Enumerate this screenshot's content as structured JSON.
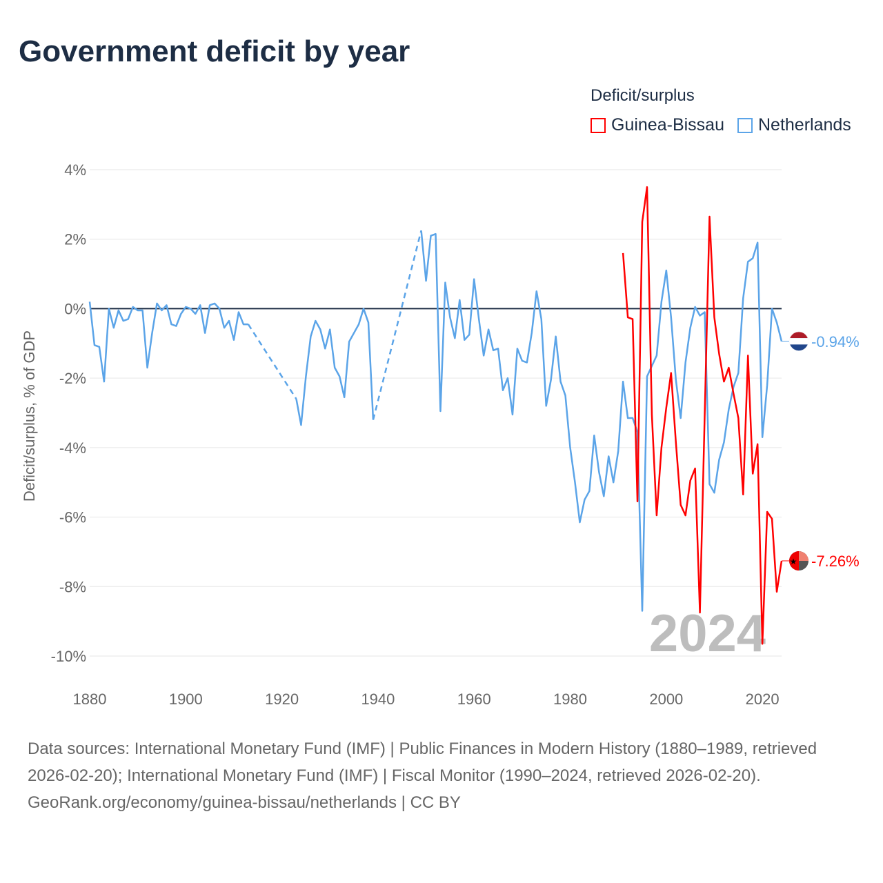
{
  "title": "Government deficit by year",
  "legend": {
    "title": "Deficit/surplus",
    "items": [
      {
        "label": "Guinea-Bissau",
        "color": "#ff0000"
      },
      {
        "label": "Netherlands",
        "color": "#5ba4e8"
      }
    ]
  },
  "year_watermark": "2024",
  "footer": {
    "sources": "Data sources: International Monetary Fund (IMF) | Public Finances in Modern History (1880–1989, retrieved 2026-02-20); International Monetary Fund (IMF) | Fiscal Monitor (1990–2024, retrieved 2026-02-20).",
    "credit": "GeoRank.org/economy/guinea-bissau/netherlands | CC BY"
  },
  "chart_data": {
    "type": "line",
    "title": "Government deficit by year",
    "xlabel": "",
    "ylabel": "Deficit/surplus, % of GDP",
    "xlim": [
      1880,
      2024
    ],
    "ylim": [
      -10,
      4
    ],
    "x_ticks": [
      1880,
      1900,
      1920,
      1940,
      1960,
      1980,
      2000,
      2020
    ],
    "y_ticks": [
      4,
      2,
      0,
      -2,
      -4,
      -6,
      -8,
      -10
    ],
    "y_tick_labels": [
      "4%",
      "2%",
      "0%",
      "-2%",
      "-4%",
      "-6%",
      "-8%",
      "-10%"
    ],
    "x_tick_labels": [
      "1880",
      "1900",
      "1920",
      "1940",
      "1960",
      "1980",
      "2000",
      "2020"
    ],
    "grid": true,
    "legend_position": "top-right",
    "series": [
      {
        "name": "Netherlands",
        "color": "#5ba4e8",
        "end_label": "-0.94%",
        "start_year": 1880,
        "values": [
          0.2,
          -1.05,
          -1.1,
          -2.1,
          0,
          -0.55,
          -0.05,
          -0.35,
          -0.3,
          0.05,
          -0.05,
          -0.05,
          -1.7,
          -0.7,
          0.15,
          -0.05,
          0.1,
          -0.45,
          -0.5,
          -0.15,
          0.05,
          0,
          -0.15,
          0.1,
          -0.7,
          0.1,
          0.15,
          0,
          -0.55,
          -0.35,
          -0.9,
          -0.1,
          -0.45,
          -0.45,
          null,
          null,
          null,
          null,
          null,
          null,
          null,
          null,
          null,
          -2.6,
          -3.35,
          -1.95,
          -0.8,
          -0.35,
          -0.6,
          -1.15,
          -0.6,
          -1.7,
          -1.95,
          -2.55,
          -0.95,
          -0.7,
          -0.45,
          0,
          -0.4,
          -3.2,
          null,
          null,
          null,
          null,
          null,
          null,
          null,
          null,
          null,
          2.25,
          0.8,
          2.1,
          2.15,
          -2.95,
          0.75,
          -0.25,
          -0.85,
          0.25,
          -0.9,
          -0.75,
          0.85,
          -0.3,
          -1.35,
          -0.6,
          -1.2,
          -1.15,
          -2.35,
          -2.0,
          -3.05,
          -1.15,
          -1.5,
          -1.55,
          -0.7,
          0.5,
          -0.3,
          -2.8,
          -2.05,
          -0.8,
          -2.1,
          -2.5,
          -4.0,
          -5.0,
          -6.15,
          -5.5,
          -5.25,
          -3.65,
          -4.7,
          -5.4,
          -4.25,
          -5.0,
          -4.1,
          -2.1,
          -3.15,
          -3.15,
          -3.55,
          -8.7,
          -1.95,
          -1.65,
          -1.35,
          0.2,
          1.1,
          -0.25,
          -2.05,
          -3.15,
          -1.55,
          -0.55,
          0.05,
          -0.2,
          -0.1,
          -5.05,
          -5.3,
          -4.35,
          -3.85,
          -2.9,
          -2.25,
          -1.85,
          0.3,
          1.35,
          1.45,
          1.9,
          -3.7,
          -2.2,
          0,
          -0.4,
          -0.94
        ]
      },
      {
        "name": "Guinea-Bissau",
        "color": "#ff0000",
        "end_label": "-7.26%",
        "start_year": 1991,
        "values": [
          1.6,
          -0.25,
          -0.3,
          -5.55,
          2.5,
          3.5,
          -3.05,
          -5.95,
          -4.0,
          -2.85,
          -1.85,
          -3.85,
          -5.65,
          -5.95,
          -4.95,
          -4.6,
          -8.75,
          -3.05,
          2.65,
          -0.25,
          -1.3,
          -2.1,
          -1.7,
          -2.45,
          -3.15,
          -5.35,
          -1.35,
          -4.75,
          -3.9,
          -9.65,
          -5.85,
          -6.05,
          -8.15,
          -7.26
        ]
      }
    ]
  }
}
